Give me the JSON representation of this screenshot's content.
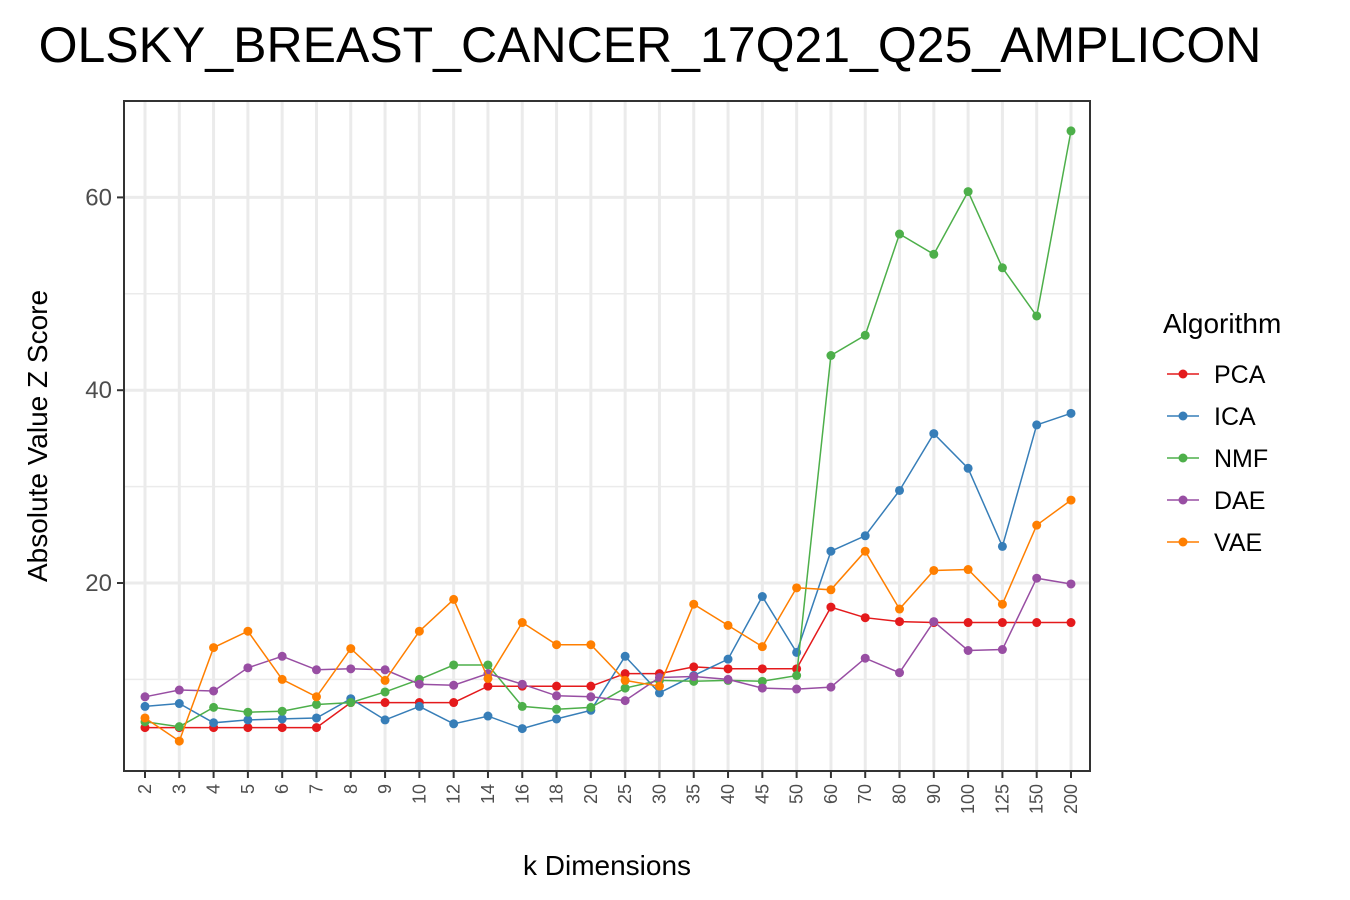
{
  "chart_data": {
    "type": "line",
    "title": "OLSKY_BREAST_CANCER_17Q21_Q25_AMPLICON",
    "xlabel": "k Dimensions",
    "ylabel": "Absolute Value Z Score",
    "categories": [
      "2",
      "3",
      "4",
      "5",
      "6",
      "7",
      "8",
      "9",
      "10",
      "12",
      "14",
      "16",
      "18",
      "20",
      "25",
      "30",
      "35",
      "40",
      "45",
      "50",
      "60",
      "70",
      "80",
      "90",
      "100",
      "125",
      "150",
      "200"
    ],
    "yticks": [
      20,
      40,
      60
    ],
    "ylim": [
      0.5,
      70
    ],
    "grid": true,
    "legend": {
      "title": "Algorithm",
      "position": "right"
    },
    "series": [
      {
        "name": "PCA",
        "color": "#e41a1c",
        "values": [
          5.0,
          5.0,
          5.0,
          5.0,
          5.0,
          5.0,
          7.6,
          7.6,
          7.6,
          7.6,
          9.3,
          9.3,
          9.3,
          9.3,
          10.6,
          10.6,
          11.3,
          11.1,
          11.1,
          11.1,
          17.5,
          16.4,
          16.0,
          15.9,
          15.9,
          15.9,
          15.9,
          15.9
        ]
      },
      {
        "name": "ICA",
        "color": "#377eb8",
        "values": [
          7.2,
          7.5,
          5.5,
          5.8,
          5.9,
          6.0,
          8.0,
          5.8,
          7.2,
          5.4,
          6.2,
          4.9,
          5.9,
          6.8,
          12.4,
          8.6,
          10.4,
          12.1,
          18.6,
          12.8,
          23.3,
          24.9,
          29.6,
          35.5,
          31.9,
          23.8,
          36.4,
          37.6
        ]
      },
      {
        "name": "NMF",
        "color": "#4daf4a",
        "values": [
          5.6,
          5.1,
          7.1,
          6.6,
          6.7,
          7.4,
          7.6,
          8.7,
          10.0,
          11.5,
          11.5,
          7.2,
          6.9,
          7.1,
          9.1,
          9.9,
          9.8,
          9.9,
          9.8,
          10.4,
          43.6,
          45.7,
          56.2,
          54.1,
          60.6,
          52.7,
          47.7,
          66.9
        ]
      },
      {
        "name": "DAE",
        "color": "#984ea3",
        "values": [
          8.2,
          8.9,
          8.8,
          11.2,
          12.4,
          11.0,
          11.1,
          11.0,
          9.5,
          9.4,
          10.6,
          9.5,
          8.3,
          8.2,
          7.8,
          10.2,
          10.3,
          10.0,
          9.1,
          9.0,
          9.2,
          12.2,
          10.7,
          16.0,
          13.0,
          13.1,
          20.5,
          19.9
        ]
      },
      {
        "name": "VAE",
        "color": "#ff7f00",
        "values": [
          6.0,
          3.6,
          13.3,
          15.0,
          10.0,
          8.2,
          13.2,
          9.9,
          15.0,
          18.3,
          10.1,
          15.9,
          13.6,
          13.6,
          9.9,
          9.3,
          17.8,
          15.6,
          13.4,
          19.5,
          19.3,
          23.3,
          17.3,
          21.3,
          21.4,
          17.8,
          26.0,
          28.6
        ]
      }
    ]
  }
}
